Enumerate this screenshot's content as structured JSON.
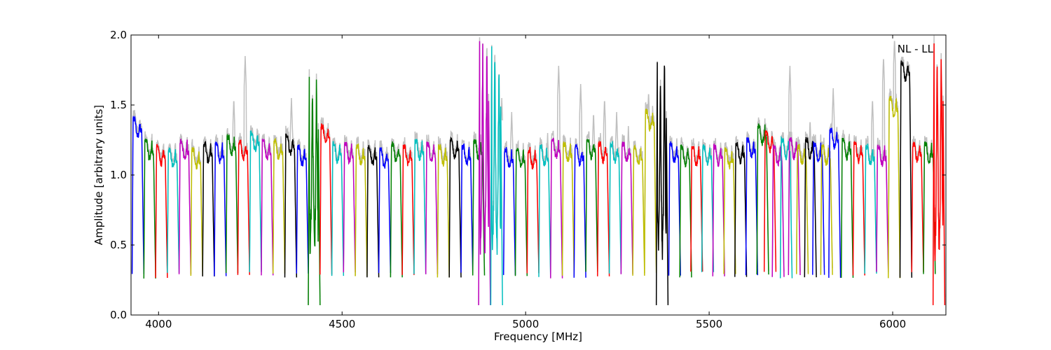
{
  "chart_data": {
    "type": "line",
    "title": "",
    "xlabel": "Frequency [MHz]",
    "ylabel": "Amplitude [arbitrary units]",
    "xlim": [
      3925,
      6145
    ],
    "ylim": [
      0.0,
      2.0
    ],
    "xticks": [
      4000,
      4500,
      5000,
      5500,
      6000
    ],
    "yticks": [
      0.0,
      0.5,
      1.0,
      1.5,
      2.0
    ],
    "xtick_labels": [
      "4000",
      "4500",
      "5000",
      "5500",
      "6000"
    ],
    "ytick_labels": [
      "0.0",
      "0.5",
      "1.0",
      "1.5",
      "2.0"
    ],
    "grid": false,
    "annotation": "NL - LL",
    "band_width_mhz": 32,
    "bands": [
      {
        "start": 3928,
        "color": "#0000ff",
        "base": 1.4
      },
      {
        "start": 3960,
        "color": "#008000",
        "base": 1.24
      },
      {
        "start": 3992,
        "color": "#ff0000",
        "base": 1.2
      },
      {
        "start": 4024,
        "color": "#00bfbf",
        "base": 1.18
      },
      {
        "start": 4056,
        "color": "#bf00bf",
        "base": 1.24
      },
      {
        "start": 4088,
        "color": "#bfbf00",
        "base": 1.18
      },
      {
        "start": 4120,
        "color": "#000000",
        "base": 1.22
      },
      {
        "start": 4152,
        "color": "#0000ff",
        "base": 1.22
      },
      {
        "start": 4184,
        "color": "#008000",
        "base": 1.27,
        "spikes": [
          {
            "x": 4205,
            "y": 1.55
          }
        ]
      },
      {
        "start": 4216,
        "color": "#ff0000",
        "base": 1.24,
        "spikes": [
          {
            "x": 4236,
            "y": 1.85
          }
        ]
      },
      {
        "start": 4248,
        "color": "#00bfbf",
        "base": 1.3
      },
      {
        "start": 4280,
        "color": "#bf00bf",
        "base": 1.24
      },
      {
        "start": 4312,
        "color": "#bfbf00",
        "base": 1.24
      },
      {
        "start": 4344,
        "color": "#000000",
        "base": 1.28,
        "spikes": [
          {
            "x": 4362,
            "y": 1.55
          }
        ]
      },
      {
        "start": 4376,
        "color": "#0000ff",
        "base": 1.2
      },
      {
        "start": 4408,
        "color": "#008000",
        "base": 1.7,
        "deep": true
      },
      {
        "start": 4440,
        "color": "#ff0000",
        "base": 1.35
      },
      {
        "start": 4472,
        "color": "#00bfbf",
        "base": 1.22
      },
      {
        "start": 4504,
        "color": "#bf00bf",
        "base": 1.22
      },
      {
        "start": 4536,
        "color": "#bfbf00",
        "base": 1.2
      },
      {
        "start": 4568,
        "color": "#000000",
        "base": 1.2
      },
      {
        "start": 4600,
        "color": "#0000ff",
        "base": 1.18
      },
      {
        "start": 4632,
        "color": "#008000",
        "base": 1.22
      },
      {
        "start": 4664,
        "color": "#ff0000",
        "base": 1.2
      },
      {
        "start": 4696,
        "color": "#00bfbf",
        "base": 1.24
      },
      {
        "start": 4728,
        "color": "#bf00bf",
        "base": 1.22
      },
      {
        "start": 4760,
        "color": "#bfbf00",
        "base": 1.2
      },
      {
        "start": 4792,
        "color": "#000000",
        "base": 1.25
      },
      {
        "start": 4824,
        "color": "#0000ff",
        "base": 1.2
      },
      {
        "start": 4856,
        "color": "#008000",
        "base": 1.24
      },
      {
        "start": 4872,
        "color": "#bf00bf",
        "base": 1.95,
        "deep": true
      },
      {
        "start": 4905,
        "color": "#00bfbf",
        "base": 1.9,
        "deep": true,
        "spikes": [
          {
            "x": 4935,
            "y": 1.55
          }
        ]
      },
      {
        "start": 4940,
        "color": "#0000ff",
        "base": 1.18,
        "spikes": [
          {
            "x": 4962,
            "y": 1.45
          }
        ]
      },
      {
        "start": 4972,
        "color": "#008000",
        "base": 1.18
      },
      {
        "start": 5004,
        "color": "#ff0000",
        "base": 1.18
      },
      {
        "start": 5036,
        "color": "#00bfbf",
        "base": 1.2,
        "spikes": [
          {
            "x": 5060,
            "y": 1.3
          }
        ]
      },
      {
        "start": 5068,
        "color": "#bf00bf",
        "base": 1.25,
        "spikes": [
          {
            "x": 5090,
            "y": 1.78
          }
        ]
      },
      {
        "start": 5100,
        "color": "#bfbf00",
        "base": 1.22
      },
      {
        "start": 5132,
        "color": "#0000ff",
        "base": 1.2,
        "spikes": [
          {
            "x": 5150,
            "y": 1.65
          }
        ]
      },
      {
        "start": 5164,
        "color": "#008000",
        "base": 1.25,
        "spikes": [
          {
            "x": 5185,
            "y": 1.45
          }
        ]
      },
      {
        "start": 5196,
        "color": "#ff0000",
        "base": 1.22,
        "spikes": [
          {
            "x": 5215,
            "y": 1.55
          }
        ]
      },
      {
        "start": 5228,
        "color": "#00bfbf",
        "base": 1.22,
        "spikes": [
          {
            "x": 5248,
            "y": 1.45
          }
        ]
      },
      {
        "start": 5260,
        "color": "#bf00bf",
        "base": 1.22,
        "spikes": [
          {
            "x": 5280,
            "y": 1.35
          }
        ]
      },
      {
        "start": 5292,
        "color": "#bfbf00",
        "base": 1.2
      },
      {
        "start": 5324,
        "color": "#bfbf00",
        "base": 1.45,
        "spikes": [
          {
            "x": 5335,
            "y": 1.6
          }
        ]
      },
      {
        "start": 5356,
        "color": "#000000",
        "base": 1.8,
        "deep": true
      },
      {
        "start": 5390,
        "color": "#0000ff",
        "base": 1.22
      },
      {
        "start": 5420,
        "color": "#008000",
        "base": 1.2
      },
      {
        "start": 5450,
        "color": "#ff0000",
        "base": 1.2
      },
      {
        "start": 5480,
        "color": "#00bfbf",
        "base": 1.2
      },
      {
        "start": 5510,
        "color": "#bf00bf",
        "base": 1.2
      },
      {
        "start": 5540,
        "color": "#bfbf00",
        "base": 1.18
      },
      {
        "start": 5570,
        "color": "#000000",
        "base": 1.22
      },
      {
        "start": 5600,
        "color": "#0000ff",
        "base": 1.25
      },
      {
        "start": 5630,
        "color": "#008000",
        "base": 1.35
      },
      {
        "start": 5650,
        "color": "#ff0000",
        "base": 1.3
      },
      {
        "start": 5672,
        "color": "#bf00bf",
        "base": 1.2
      },
      {
        "start": 5694,
        "color": "#00bfbf",
        "base": 1.25,
        "spikes": [
          {
            "x": 5720,
            "y": 1.78
          },
          {
            "x": 5732,
            "y": 1.6
          }
        ]
      },
      {
        "start": 5716,
        "color": "#bf00bf",
        "base": 1.25
      },
      {
        "start": 5738,
        "color": "#bfbf00",
        "base": 1.2
      },
      {
        "start": 5760,
        "color": "#000000",
        "base": 1.25,
        "spikes": [
          {
            "x": 5775,
            "y": 1.4
          }
        ]
      },
      {
        "start": 5782,
        "color": "#0000ff",
        "base": 1.22
      },
      {
        "start": 5804,
        "color": "#bfbf00",
        "base": 1.2
      },
      {
        "start": 5826,
        "color": "#0000ff",
        "base": 1.32,
        "spikes": [
          {
            "x": 5838,
            "y": 1.62
          }
        ]
      },
      {
        "start": 5860,
        "color": "#008000",
        "base": 1.25
      },
      {
        "start": 5892,
        "color": "#ff0000",
        "base": 1.22
      },
      {
        "start": 5924,
        "color": "#00bfbf",
        "base": 1.2,
        "spikes": [
          {
            "x": 5945,
            "y": 1.55
          }
        ]
      },
      {
        "start": 5956,
        "color": "#bf00bf",
        "base": 1.2,
        "spikes": [
          {
            "x": 5975,
            "y": 1.85
          }
        ]
      },
      {
        "start": 5988,
        "color": "#bfbf00",
        "base": 1.55,
        "spikes": [
          {
            "x": 6005,
            "y": 1.98
          }
        ]
      },
      {
        "start": 6020,
        "color": "#000000",
        "base": 1.8,
        "spikes": [
          {
            "x": 6030,
            "y": 1.6
          }
        ]
      },
      {
        "start": 6052,
        "color": "#ff0000",
        "base": 1.22
      },
      {
        "start": 6084,
        "color": "#008000",
        "base": 1.22
      },
      {
        "start": 6110,
        "color": "#ff0000",
        "base": 1.95,
        "deep": true
      }
    ]
  }
}
